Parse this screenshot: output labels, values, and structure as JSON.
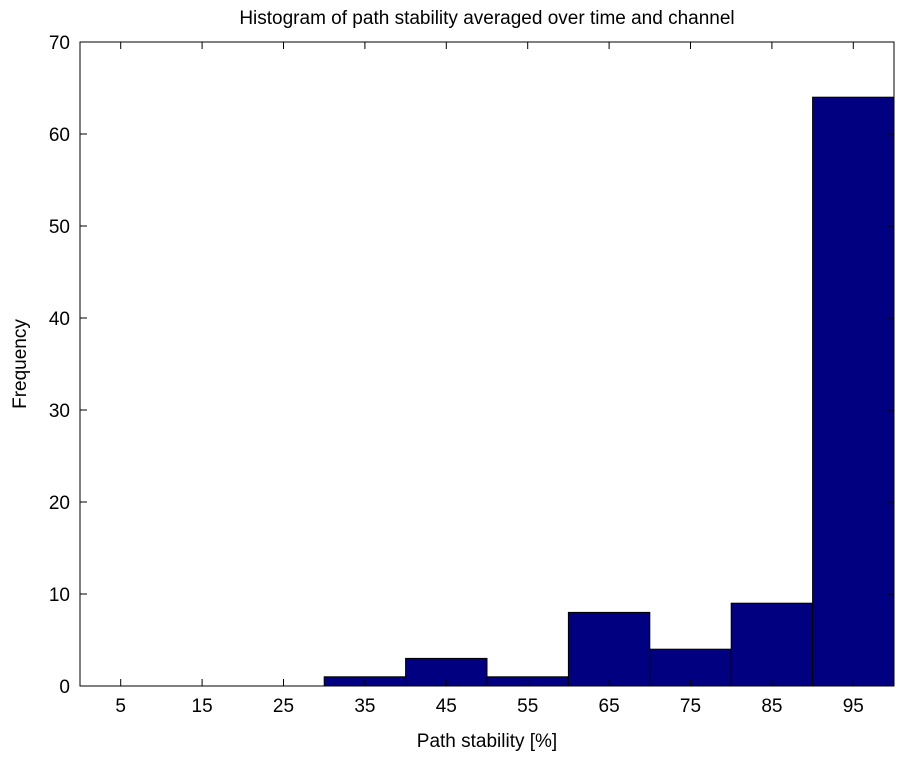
{
  "chart_data": {
    "type": "bar",
    "title": "Histogram of path stability averaged over time and channel",
    "xlabel": "Path stability [%]",
    "ylabel": "Frequency",
    "categories": [
      "5",
      "15",
      "25",
      "35",
      "45",
      "55",
      "65",
      "75",
      "85",
      "95"
    ],
    "bin_centers": [
      5,
      15,
      25,
      35,
      45,
      55,
      65,
      75,
      85,
      95
    ],
    "bin_width": 10,
    "values": [
      0,
      0,
      0,
      1,
      3,
      1,
      8,
      4,
      9,
      64
    ],
    "xlim": [
      0,
      100
    ],
    "ylim": [
      0,
      70
    ],
    "yticks": [
      0,
      10,
      20,
      30,
      40,
      50,
      60,
      70
    ],
    "bar_color": "#000080",
    "grid": false,
    "legend": "none"
  }
}
